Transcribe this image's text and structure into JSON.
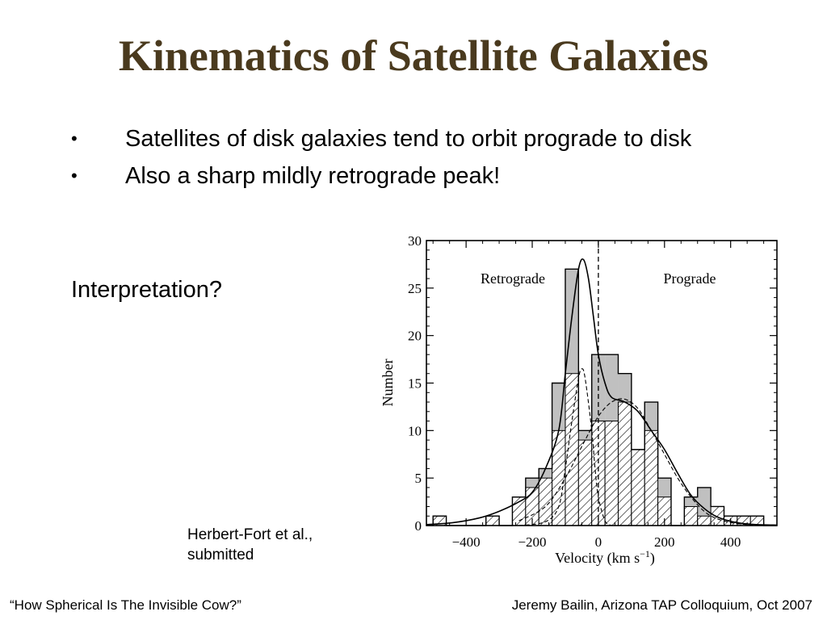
{
  "slide": {
    "title": "Kinematics of Satellite Galaxies",
    "bullets": [
      "Satellites of disk galaxies tend to orbit prograde to disk",
      "Also a sharp mildly retrograde peak!"
    ],
    "bullet_glyph": "•",
    "interpretation": "Interpretation?",
    "citation": [
      "Herbert-Fort et al.,",
      "submitted"
    ],
    "footer_left": "“How Spherical Is The Invisible Cow?”",
    "footer_right": "Jeremy Bailin, Arizona TAP Colloquium, Oct 2007",
    "colors": {
      "title": "#4a3a1e",
      "bars": "#c0c0c0",
      "text": "#000000"
    }
  },
  "chart_data": {
    "type": "bar",
    "xlabel": "Velocity (km s",
    "xlabel_sup": "−1",
    "xlabel_close": ")",
    "ylabel": "Number",
    "xlim": [
      -520,
      540
    ],
    "ylim": [
      0,
      30
    ],
    "xticks": [
      -400,
      -200,
      0,
      200,
      400
    ],
    "xtick_labels": [
      "−400",
      "−200",
      "0",
      "200",
      "400"
    ],
    "yticks": [
      0,
      5,
      10,
      15,
      20,
      25,
      30
    ],
    "ytick_labels": [
      "0",
      "5",
      "10",
      "15",
      "20",
      "25",
      "30"
    ],
    "bin_width": 40,
    "bin_starts": [
      -500,
      -460,
      -420,
      -380,
      -340,
      -300,
      -260,
      -220,
      -180,
      -140,
      -100,
      -60,
      -20,
      20,
      60,
      100,
      140,
      180,
      220,
      260,
      300,
      340,
      380,
      420,
      460,
      500
    ],
    "series": [
      {
        "values": [
          1,
          0,
          0,
          0,
          1,
          0,
          3,
          5,
          6,
          15,
          27,
          10,
          18,
          18,
          16,
          8,
          13,
          5,
          0,
          3,
          4,
          2,
          1,
          1,
          1,
          0
        ]
      },
      {
        "values": [
          1,
          0,
          0,
          0,
          1,
          0,
          3,
          4,
          5,
          10,
          16,
          9,
          11,
          11,
          13,
          8,
          10,
          3,
          0,
          2,
          1,
          2,
          1,
          1,
          1,
          0
        ]
      }
    ],
    "region_labels": [
      "Retrograde",
      "Prograde"
    ],
    "vline_x": 0,
    "curves": [
      {
        "style": "solid",
        "points": [
          [
            -520,
            0.1
          ],
          [
            -440,
            0.3
          ],
          [
            -360,
            0.8
          ],
          [
            -300,
            1.5
          ],
          [
            -240,
            2.5
          ],
          [
            -200,
            3.5
          ],
          [
            -160,
            6
          ],
          [
            -120,
            10
          ],
          [
            -100,
            16
          ],
          [
            -80,
            22
          ],
          [
            -60,
            27
          ],
          [
            -45,
            28
          ],
          [
            -30,
            26
          ],
          [
            -15,
            22
          ],
          [
            0,
            18
          ],
          [
            20,
            15
          ],
          [
            40,
            13.5
          ],
          [
            80,
            13
          ],
          [
            120,
            12
          ],
          [
            160,
            10
          ],
          [
            200,
            8
          ],
          [
            240,
            5.5
          ],
          [
            280,
            3.2
          ],
          [
            320,
            1.8
          ],
          [
            360,
            0.9
          ],
          [
            420,
            0.3
          ],
          [
            480,
            0.1
          ],
          [
            540,
            0.05
          ]
        ]
      },
      {
        "style": "dashed",
        "points": [
          [
            -240,
            0
          ],
          [
            -160,
            0.4
          ],
          [
            -120,
            2
          ],
          [
            -100,
            6
          ],
          [
            -80,
            11
          ],
          [
            -60,
            15.5
          ],
          [
            -50,
            16.5
          ],
          [
            -40,
            15.5
          ],
          [
            -20,
            10
          ],
          [
            -10,
            6
          ],
          [
            0,
            3
          ],
          [
            20,
            0.5
          ],
          [
            40,
            0
          ]
        ]
      },
      {
        "style": "dashed",
        "points": [
          [
            -240,
            0.5
          ],
          [
            -160,
            2
          ],
          [
            -100,
            5
          ],
          [
            -40,
            9
          ],
          [
            0,
            11.5
          ],
          [
            40,
            13
          ],
          [
            80,
            13.3
          ],
          [
            120,
            12.3
          ],
          [
            160,
            10
          ],
          [
            200,
            7.5
          ],
          [
            240,
            5
          ],
          [
            280,
            3
          ],
          [
            320,
            1.5
          ],
          [
            360,
            0.7
          ],
          [
            420,
            0.2
          ],
          [
            500,
            0
          ]
        ]
      }
    ]
  }
}
